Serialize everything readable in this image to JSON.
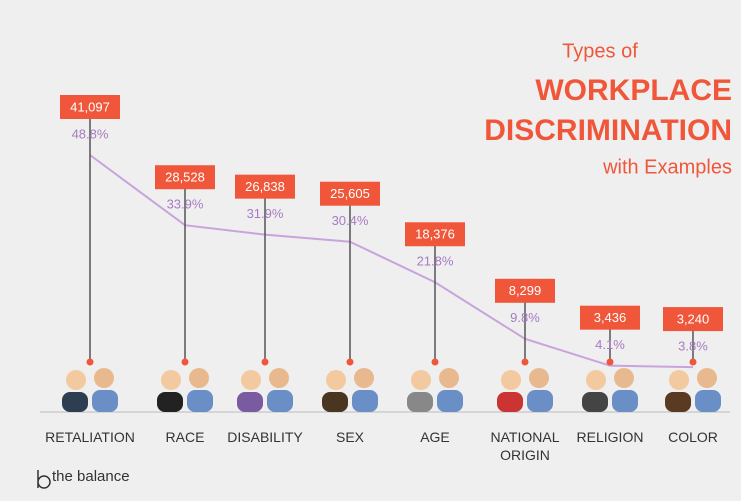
{
  "chart_data": {
    "type": "line",
    "title": [
      "Types of",
      "WORKPLACE",
      "DISCRIMINATION",
      "with Examples"
    ],
    "categories": [
      "RETALIATION",
      "RACE",
      "DISABILITY",
      "SEX",
      "AGE",
      "NATIONAL ORIGIN",
      "RELIGION",
      "COLOR"
    ],
    "series": [
      {
        "color": "#f0573a",
        "values": [
          41097,
          28528,
          26838,
          25605,
          18376,
          8299,
          3436,
          3240
        ],
        "value_labels": [
          "41,097",
          "28,528",
          "26,838",
          "25,605",
          "18,376",
          "8,299",
          "3,436",
          "3,240"
        ]
      },
      {
        "color": "#c9a3dd",
        "values": [
          48.8,
          33.9,
          31.9,
          30.4,
          21.8,
          9.8,
          4.1,
          3.8
        ],
        "value_labels": [
          "48.8%",
          "33.9%",
          "31.9%",
          "30.4%",
          "21.8%",
          "9.8%",
          "4.1%",
          "3.8%"
        ]
      }
    ],
    "source": "the balance"
  }
}
